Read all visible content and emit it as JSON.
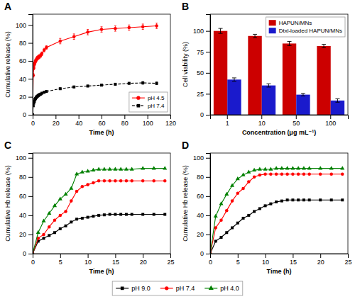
{
  "chart_data": [
    {
      "type": "line",
      "title": "A",
      "xlabel": "Time (h)",
      "ylabel": "Cumulative release (%)",
      "x": [
        0,
        0.5,
        1,
        1.5,
        2,
        2.5,
        3,
        3.5,
        4,
        4.5,
        5,
        5.5,
        6,
        7,
        8,
        10,
        12,
        24,
        36,
        48,
        60,
        72,
        84,
        96,
        108
      ],
      "series": [
        {
          "name": "pH 4.5",
          "color": "red",
          "marker": "circle",
          "line_style": "solid",
          "values": [
            0,
            44,
            52,
            56,
            58,
            60,
            61,
            62,
            63,
            63.5,
            64,
            64.5,
            65,
            66,
            68,
            72,
            75,
            82,
            87,
            92,
            95,
            96,
            97,
            98,
            99
          ],
          "errors": [
            0,
            2,
            2,
            2,
            2,
            2,
            2,
            2,
            2,
            2,
            2,
            2,
            2,
            2,
            2,
            2,
            2,
            3,
            3,
            3,
            3,
            3,
            3,
            3,
            3
          ]
        },
        {
          "name": "pH 7.4",
          "color": "black",
          "marker": "square",
          "line_style": "dashed",
          "values": [
            0,
            10,
            13,
            15,
            17,
            18,
            19,
            20,
            20.5,
            21,
            21.5,
            22,
            22.5,
            23,
            24,
            25,
            26,
            29,
            31,
            32,
            33,
            34,
            35,
            35.5,
            35
          ],
          "errors": [
            0,
            1,
            1,
            1,
            1,
            1,
            1,
            1,
            1,
            1,
            1,
            1,
            1,
            1,
            1,
            1,
            1,
            1,
            1,
            1,
            1,
            1,
            1,
            1.5,
            1.5
          ]
        }
      ],
      "xlim": [
        0,
        120
      ],
      "ylim": [
        0,
        112
      ],
      "xticks": [
        0,
        20,
        40,
        60,
        80,
        100,
        120
      ],
      "yticks": [
        0,
        20,
        40,
        60,
        80,
        100
      ],
      "legend": "lower right"
    },
    {
      "type": "bar",
      "title": "B",
      "xlabel": "Concentration (μg mL⁻¹)",
      "ylabel": "Cell viability (%)",
      "categories": [
        "1",
        "10",
        "50",
        "100"
      ],
      "series": [
        {
          "name": "HAPUN/MNs",
          "color": "#CC0000",
          "values": [
            100,
            94,
            85,
            82
          ],
          "errors": [
            3,
            2,
            2.5,
            2
          ]
        },
        {
          "name": "Dtxl-loaded HAPUN/MNs",
          "color": "#1a1aCC",
          "values": [
            42,
            35,
            24,
            17
          ],
          "errors": [
            2,
            2,
            1.5,
            2
          ]
        }
      ],
      "ylim": [
        0,
        120
      ],
      "yticks": [
        0,
        25,
        50,
        75,
        100
      ],
      "legend": "upper right"
    },
    {
      "type": "line",
      "title": "C",
      "xlabel": "Time (h)",
      "ylabel": "Cumulative Hb release (%)",
      "x": [
        0,
        1,
        2,
        3,
        4,
        5,
        6,
        7,
        8,
        9,
        10,
        11,
        12,
        13,
        14,
        15,
        16,
        17,
        18,
        20,
        22,
        24
      ],
      "series": [
        {
          "name": "pH 9.0",
          "color": "black",
          "marker": "square",
          "line_style": "solid",
          "values": [
            0,
            13,
            16,
            19,
            22,
            26,
            29,
            33,
            36,
            37,
            38,
            39,
            40,
            40.5,
            41,
            41,
            41,
            41,
            41,
            41,
            41,
            41
          ]
        },
        {
          "name": "pH 7.4",
          "color": "red",
          "marker": "circle",
          "line_style": "solid",
          "values": [
            0,
            16,
            20,
            28,
            35,
            40,
            44,
            55,
            65,
            70,
            72,
            74,
            76,
            76,
            76,
            76,
            76,
            76,
            76,
            76,
            76,
            76
          ]
        },
        {
          "name": "pH 4.0",
          "color": "green",
          "marker": "triangle",
          "line_style": "solid",
          "values": [
            0,
            22,
            34,
            42,
            50,
            57,
            62,
            68,
            83,
            85,
            86,
            87,
            88,
            88,
            88,
            88,
            88,
            88,
            88,
            89,
            89,
            89
          ]
        }
      ],
      "xlim": [
        0,
        25
      ],
      "ylim": [
        0,
        105
      ],
      "xticks": [
        0,
        5,
        10,
        15,
        20,
        25
      ],
      "yticks": [
        0,
        20,
        40,
        60,
        80,
        100
      ],
      "legend": "bottom"
    },
    {
      "type": "line",
      "title": "D",
      "xlabel": "Time (h)",
      "ylabel": "Cumulative Hb release (%)",
      "x": [
        0,
        1,
        2,
        3,
        4,
        5,
        6,
        7,
        8,
        9,
        10,
        11,
        12,
        13,
        14,
        15,
        16,
        17,
        18,
        20,
        22,
        24
      ],
      "series": [
        {
          "name": "pH 9.0",
          "color": "black",
          "marker": "square",
          "line_style": "solid",
          "values": [
            0,
            13,
            17,
            22,
            27,
            32,
            37,
            40,
            44,
            47,
            50,
            52,
            54,
            55,
            56,
            56,
            56,
            56,
            56,
            56,
            56,
            56
          ]
        },
        {
          "name": "pH 7.4",
          "color": "red",
          "marker": "circle",
          "line_style": "solid",
          "values": [
            0,
            27,
            35,
            45,
            55,
            63,
            68,
            75,
            80,
            82,
            83,
            83,
            83,
            83,
            83,
            83,
            83,
            83,
            83,
            83,
            83,
            83
          ]
        },
        {
          "name": "pH 4.0",
          "color": "green",
          "marker": "triangle",
          "line_style": "solid",
          "values": [
            0,
            39,
            52,
            62,
            71,
            78,
            82,
            85,
            87,
            88,
            88,
            88,
            89,
            89,
            89,
            89,
            89,
            89,
            89,
            89,
            89,
            89
          ]
        }
      ],
      "xlim": [
        0,
        25
      ],
      "ylim": [
        0,
        105
      ],
      "xticks": [
        0,
        5,
        10,
        15,
        20,
        25
      ],
      "yticks": [
        0,
        20,
        40,
        60,
        80,
        100
      ],
      "legend": "bottom"
    }
  ]
}
